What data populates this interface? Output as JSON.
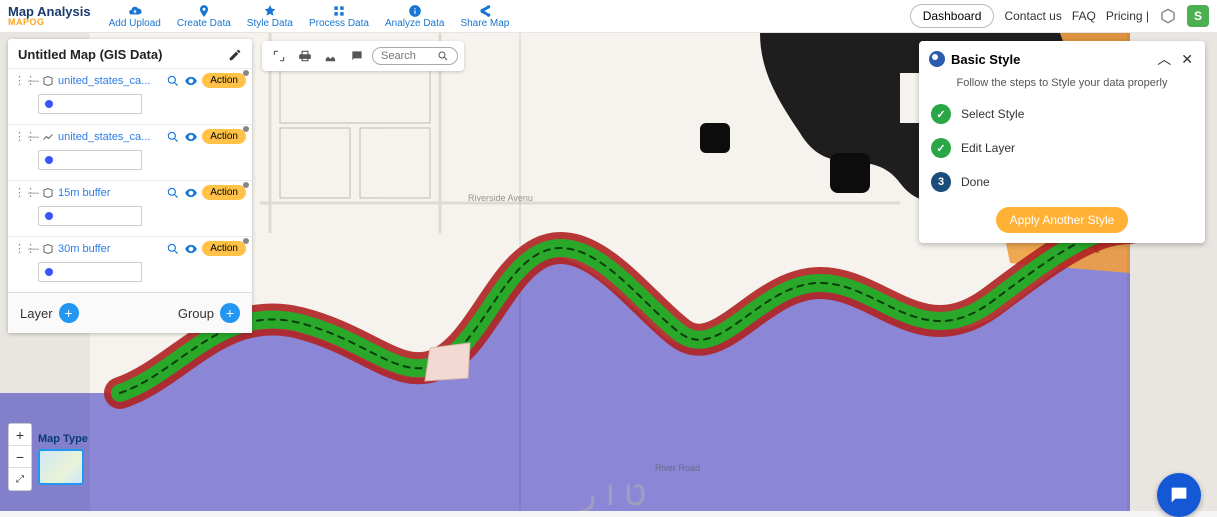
{
  "brand": {
    "title": "Map Analysis",
    "sub_a": "MAP",
    "sub_b": "OG"
  },
  "nav": [
    {
      "label": "Add Upload"
    },
    {
      "label": "Create Data"
    },
    {
      "label": "Style Data"
    },
    {
      "label": "Process Data"
    },
    {
      "label": "Analyze Data"
    },
    {
      "label": "Share Map"
    }
  ],
  "rightnav": {
    "dashboard": "Dashboard",
    "contact": "Contact us",
    "faq": "FAQ",
    "pricing": "Pricing |",
    "avatar_letter": "S"
  },
  "layers_panel": {
    "title": "Untitled Map (GIS Data)",
    "action_label": "Action",
    "layers": [
      {
        "name": "united_states_ca...",
        "type": "polygon"
      },
      {
        "name": "united_states_ca...",
        "type": "line"
      },
      {
        "name": "15m buffer",
        "type": "polygon"
      },
      {
        "name": "30m buffer",
        "type": "polygon"
      }
    ],
    "footer_layer": "Layer",
    "footer_group": "Group",
    "swatch_color": "#3f51ff"
  },
  "map_toolbar": {
    "search_placeholder": "Search"
  },
  "style_panel": {
    "title": "Basic Style",
    "subtitle": "Follow the steps to Style your data properly",
    "steps": [
      {
        "label": "Select Style",
        "done": true
      },
      {
        "label": "Edit Layer",
        "done": true
      },
      {
        "label": "Done",
        "done": false,
        "num": "3"
      }
    ],
    "apply": "Apply Another Style"
  },
  "maptype_label": "Map Type",
  "map_style": {
    "land_color": "#f6f3ee",
    "water_color": "#8b87d6",
    "river_core": "#2aa82a",
    "river_outline": "#b02222",
    "road_color": "#d9d4cc",
    "black_patch": "#0c0c0c",
    "orange_patch": "#f0a040",
    "road_label_1": "Riverside Avenu",
    "road_label_2": "River Road"
  }
}
